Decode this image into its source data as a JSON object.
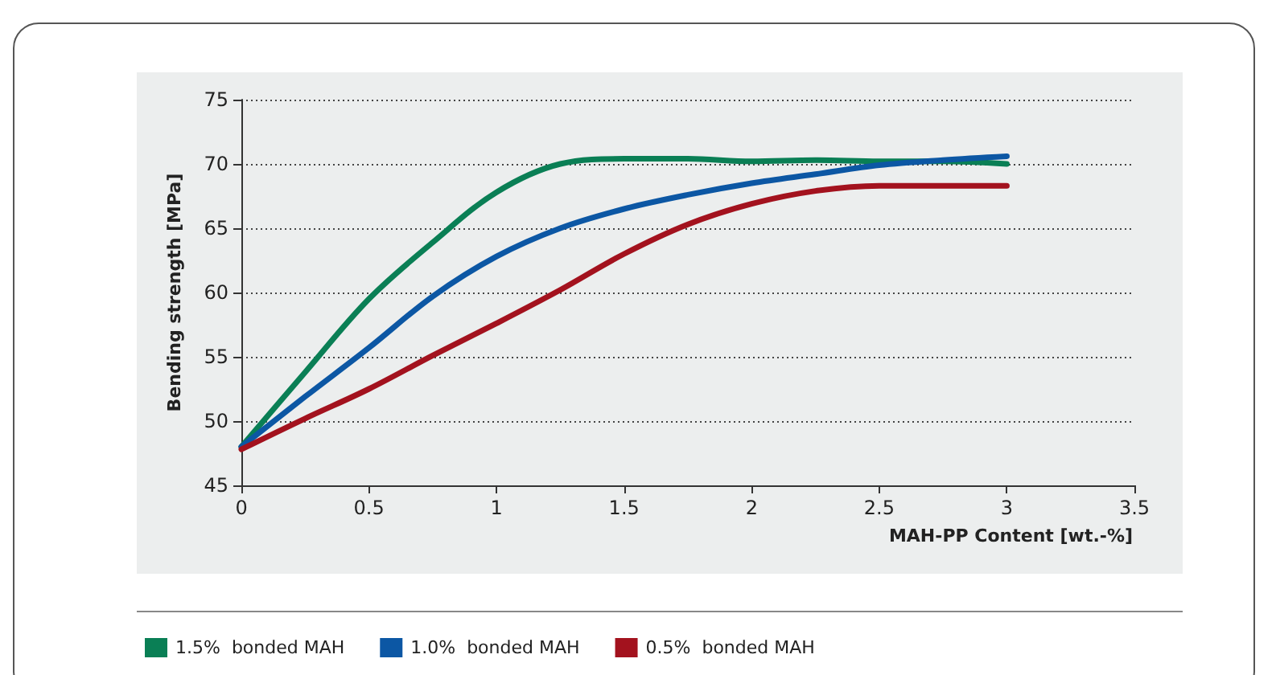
{
  "chart_data": {
    "type": "line",
    "xlabel": "MAH-PP Content [wt.-%]",
    "ylabel": "Bending strength [MPa]",
    "xlim": [
      0,
      3.5
    ],
    "xticks": [
      0,
      0.5,
      1,
      1.5,
      2,
      2.5,
      3,
      3.5
    ],
    "ylim": [
      45,
      75
    ],
    "yticks": [
      45,
      50,
      55,
      60,
      65,
      70,
      75
    ],
    "grid": "y",
    "legend": "bottom left",
    "x": [
      0,
      0.25,
      0.5,
      0.75,
      1,
      1.25,
      1.5,
      1.75,
      2,
      2.25,
      2.5,
      2.75,
      3
    ],
    "series": [
      {
        "name": "1.5%  bonded MAH",
        "color": "#0a7f55",
        "values": [
          48,
          53.8,
          59.5,
          63.9,
          67.8,
          70,
          70.4,
          70.4,
          70.2,
          70.3,
          70.2,
          70.2,
          70
        ]
      },
      {
        "name": "1.0%  bonded MAH",
        "color": "#0c57a4",
        "values": [
          48,
          51.9,
          55.7,
          59.7,
          62.8,
          65,
          66.5,
          67.6,
          68.5,
          69.2,
          69.9,
          70.3,
          70.6
        ]
      },
      {
        "name": "0.5%  bonded MAH",
        "color": "#a3121e",
        "values": [
          47.8,
          50.2,
          52.5,
          55.1,
          57.6,
          60.2,
          63,
          65.3,
          66.9,
          67.9,
          68.3,
          68.3,
          68.3
        ]
      }
    ]
  }
}
